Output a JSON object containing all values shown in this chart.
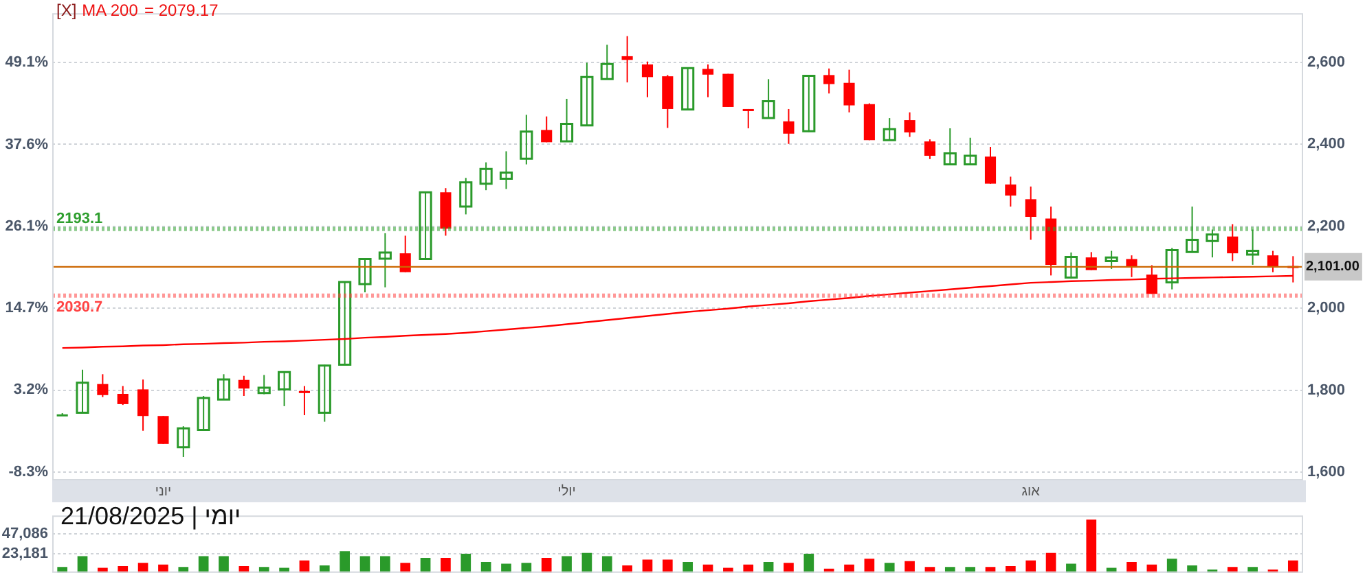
{
  "chart_data": [
    {
      "type": "candlestick",
      "title": "[X]",
      "annotations": [
        "= 2079.17"
      ],
      "categories": [
        null,
        null,
        null,
        null,
        null,
        "יוני",
        null,
        null,
        null,
        null,
        null,
        null,
        null,
        null,
        null,
        null,
        null,
        null,
        null,
        null,
        null,
        null,
        null,
        null,
        null,
        "יולי",
        null,
        null,
        null,
        null,
        null,
        null,
        null,
        null,
        null,
        null,
        null,
        null,
        null,
        null,
        null,
        null,
        null,
        null,
        null,
        null,
        null,
        null,
        "אוג",
        null,
        null,
        null,
        null,
        null,
        null,
        null,
        null,
        null,
        null,
        null,
        null,
        null
      ],
      "ohlc": [
        [
          1741,
          1744,
          1738,
          1741
        ],
        [
          1745,
          1850,
          1745,
          1818
        ],
        [
          1815,
          1839,
          1783,
          1788
        ],
        [
          1791,
          1810,
          1764,
          1766
        ],
        [
          1802,
          1826,
          1701,
          1737
        ],
        [
          1737,
          1737,
          1669,
          1669
        ],
        [
          1661,
          1712,
          1637,
          1707
        ],
        [
          1703,
          1786,
          1703,
          1781
        ],
        [
          1777,
          1839,
          1777,
          1826
        ],
        [
          1825,
          1835,
          1786,
          1804
        ],
        [
          1793,
          1837,
          1790,
          1806
        ],
        [
          1802,
          1846,
          1761,
          1844
        ],
        [
          1798,
          1810,
          1739,
          1795
        ],
        [
          1745,
          1862,
          1723,
          1860
        ],
        [
          1862,
          2064,
          1862,
          2064
        ],
        [
          2059,
          2122,
          2039,
          2120
        ],
        [
          2121,
          2183,
          2051,
          2136
        ],
        [
          2134,
          2177,
          2088,
          2088
        ],
        [
          2120,
          2285,
          2120,
          2283
        ],
        [
          2283,
          2293,
          2177,
          2194
        ],
        [
          2248,
          2318,
          2229,
          2307
        ],
        [
          2304,
          2356,
          2288,
          2340
        ],
        [
          2316,
          2383,
          2291,
          2331
        ],
        [
          2365,
          2472,
          2351,
          2431
        ],
        [
          2435,
          2468,
          2405,
          2405
        ],
        [
          2407,
          2511,
          2407,
          2450
        ],
        [
          2446,
          2599,
          2446,
          2564
        ],
        [
          2559,
          2643,
          2559,
          2596
        ],
        [
          2615,
          2664,
          2551,
          2606
        ],
        [
          2595,
          2602,
          2515,
          2564
        ],
        [
          2566,
          2569,
          2440,
          2486
        ],
        [
          2485,
          2588,
          2485,
          2586
        ],
        [
          2584,
          2595,
          2515,
          2570
        ],
        [
          2572,
          2572,
          2491,
          2491
        ],
        [
          2486,
          2486,
          2439,
          2481
        ],
        [
          2464,
          2559,
          2464,
          2505
        ],
        [
          2456,
          2486,
          2401,
          2426
        ],
        [
          2432,
          2569,
          2430,
          2567
        ],
        [
          2569,
          2585,
          2524,
          2547
        ],
        [
          2550,
          2582,
          2478,
          2495
        ],
        [
          2498,
          2500,
          2410,
          2410
        ],
        [
          2410,
          2464,
          2410,
          2437
        ],
        [
          2459,
          2478,
          2418,
          2429
        ],
        [
          2407,
          2412,
          2364,
          2372
        ],
        [
          2351,
          2439,
          2351,
          2378
        ],
        [
          2351,
          2416,
          2351,
          2372
        ],
        [
          2370,
          2394,
          2304,
          2304
        ],
        [
          2302,
          2321,
          2248,
          2275
        ],
        [
          2266,
          2297,
          2167,
          2223
        ],
        [
          2219,
          2248,
          2080,
          2106
        ],
        [
          2075,
          2136,
          2072,
          2125
        ],
        [
          2124,
          2137,
          2093,
          2093
        ],
        [
          2115,
          2140,
          2096,
          2124
        ],
        [
          2120,
          2129,
          2076,
          2102
        ],
        [
          2082,
          2105,
          2035,
          2035
        ],
        [
          2063,
          2147,
          2046,
          2142
        ],
        [
          2137,
          2248,
          2137,
          2167
        ],
        [
          2164,
          2192,
          2124,
          2180
        ],
        [
          2175,
          2205,
          2115,
          2134
        ],
        [
          2131,
          2192,
          2106,
          2140
        ],
        [
          2129,
          2140,
          2088,
          2102
        ],
        [
          2103,
          2127,
          2063,
          2101
        ]
      ],
      "colors": [
        "#2a9a2a",
        "#2a9a2a",
        "#ff0000",
        "#ff0000",
        "#ff0000",
        "#ff0000",
        "#2a9a2a",
        "#2a9a2a",
        "#2a9a2a",
        "#ff0000",
        "#2a9a2a",
        "#2a9a2a",
        "#ff0000",
        "#2a9a2a",
        "#2a9a2a",
        "#2a9a2a",
        "#2a9a2a",
        "#ff0000",
        "#2a9a2a",
        "#ff0000",
        "#2a9a2a",
        "#2a9a2a",
        "#2a9a2a",
        "#2a9a2a",
        "#ff0000",
        "#2a9a2a",
        "#2a9a2a",
        "#2a9a2a",
        "#ff0000",
        "#ff0000",
        "#ff0000",
        "#2a9a2a",
        "#ff0000",
        "#ff0000",
        "#ff0000",
        "#2a9a2a",
        "#ff0000",
        "#2a9a2a",
        "#ff0000",
        "#ff0000",
        "#ff0000",
        "#2a9a2a",
        "#ff0000",
        "#ff0000",
        "#2a9a2a",
        "#2a9a2a",
        "#ff0000",
        "#ff0000",
        "#ff0000",
        "#ff0000",
        "#2a9a2a",
        "#ff0000",
        "#2a9a2a",
        "#ff0000",
        "#ff0000",
        "#2a9a2a",
        "#2a9a2a",
        "#2a9a2a",
        "#ff0000",
        "#2a9a2a",
        "#ff0000",
        "#ff0000"
      ],
      "series": [
        {
          "type": "line",
          "name": "MA 200",
          "color": "#ff0000",
          "values": [
            1903,
            1904,
            1906,
            1907,
            1909,
            1910,
            1912,
            1913,
            1915,
            1916,
            1918,
            1919,
            1921,
            1923,
            1925,
            1928,
            1930,
            1933,
            1935,
            1937,
            1940,
            1944,
            1948,
            1952,
            1956,
            1961,
            1966,
            1971,
            1976,
            1981,
            1986,
            1991,
            1995,
            1999,
            2004,
            2008,
            2012,
            2017,
            2021,
            2025,
            2030,
            2034,
            2038,
            2042,
            2046,
            2050,
            2054,
            2058,
            2062,
            2064,
            2066,
            2067,
            2069,
            2070,
            2072,
            2073,
            2074,
            2075,
            2076,
            2077,
            2078,
            2079
          ]
        }
      ],
      "ylim": [
        1580,
        2720
      ],
      "yticks": [
        {
          "value": 1600,
          "label": "1,600"
        },
        {
          "value": 1800,
          "label": "1,800"
        },
        {
          "value": 2000,
          "label": "2,000"
        },
        {
          "value": 2200,
          "label": "2,200"
        },
        {
          "value": 2400,
          "label": "2,400"
        },
        {
          "value": 2600,
          "label": "2,600"
        }
      ],
      "y2lim": [
        -9.45,
        55.99
      ],
      "y2ticks": [
        {
          "value": -8.3,
          "label": "-8.3%"
        },
        {
          "value": 3.2,
          "label": "3.2%"
        },
        {
          "value": 14.7,
          "label": "14.7%"
        },
        {
          "value": 26.1,
          "label": "26.1%"
        },
        {
          "value": 37.6,
          "label": "37.6%"
        },
        {
          "value": 49.1,
          "label": "49.1%"
        }
      ],
      "ref_lines": [
        {
          "axis": "y",
          "value": 2193.1,
          "label": "2193.1",
          "color": "#2e9e2e",
          "line_style": "dotted"
        },
        {
          "axis": "y",
          "value": 2101,
          "label": "2,101.00",
          "color": "#cc6600",
          "line_style": "solid"
        },
        {
          "axis": "y",
          "value": 2030.7,
          "label": "2030.7",
          "color": "#ff4444",
          "line_style": "dotted"
        }
      ],
      "grid": "y",
      "legend": false
    },
    {
      "type": "bar",
      "categories": [
        null,
        null,
        null,
        null,
        null,
        null,
        null,
        null,
        null,
        null,
        null,
        null,
        null,
        null,
        null,
        null,
        null,
        null,
        null,
        null,
        null,
        null,
        null,
        null,
        null,
        null,
        null,
        null,
        null,
        null,
        null,
        null,
        null,
        null,
        null,
        null,
        null,
        null,
        null,
        null,
        null,
        null,
        null,
        null,
        null,
        null,
        null,
        null,
        null,
        null,
        null,
        null,
        null,
        null,
        null,
        null,
        null,
        null,
        null,
        null,
        null,
        null
      ],
      "values": [
        7000,
        20000,
        6000,
        8000,
        12000,
        10000,
        7000,
        20000,
        20000,
        8000,
        7000,
        6000,
        15000,
        9000,
        26000,
        20000,
        20000,
        12000,
        18000,
        18000,
        23000,
        13000,
        11000,
        12000,
        18000,
        20000,
        24000,
        20000,
        9000,
        16000,
        16000,
        13000,
        10000,
        6000,
        10000,
        13000,
        12000,
        23000,
        5000,
        10000,
        17000,
        12000,
        14000,
        7000,
        7000,
        7000,
        7000,
        8000,
        15000,
        24000,
        11000,
        64000,
        6000,
        13000,
        10000,
        17000,
        9000,
        4000,
        7000,
        7000,
        4000,
        15000
      ],
      "colors": [
        "#2a9a2a",
        "#2a9a2a",
        "#ff0000",
        "#ff0000",
        "#ff0000",
        "#ff0000",
        "#2a9a2a",
        "#2a9a2a",
        "#2a9a2a",
        "#ff0000",
        "#2a9a2a",
        "#2a9a2a",
        "#ff0000",
        "#2a9a2a",
        "#2a9a2a",
        "#2a9a2a",
        "#2a9a2a",
        "#ff0000",
        "#2a9a2a",
        "#ff0000",
        "#2a9a2a",
        "#2a9a2a",
        "#2a9a2a",
        "#2a9a2a",
        "#ff0000",
        "#2a9a2a",
        "#2a9a2a",
        "#2a9a2a",
        "#ff0000",
        "#ff0000",
        "#ff0000",
        "#2a9a2a",
        "#ff0000",
        "#ff0000",
        "#ff0000",
        "#2a9a2a",
        "#ff0000",
        "#2a9a2a",
        "#ff0000",
        "#ff0000",
        "#ff0000",
        "#2a9a2a",
        "#ff0000",
        "#ff0000",
        "#2a9a2a",
        "#2a9a2a",
        "#ff0000",
        "#ff0000",
        "#ff0000",
        "#ff0000",
        "#2a9a2a",
        "#ff0000",
        "#2a9a2a",
        "#ff0000",
        "#ff0000",
        "#2a9a2a",
        "#2a9a2a",
        "#2a9a2a",
        "#ff0000",
        "#2a9a2a",
        "#ff0000",
        "#ff0000"
      ],
      "ylim": [
        0,
        69000
      ],
      "yticks": [
        {
          "value": 23181,
          "label": "23,181"
        },
        {
          "value": 47086,
          "label": "47,086"
        }
      ],
      "annotations": [
        "יומי | 21/08/2025"
      ],
      "tick_labels": "y",
      "grid": "y",
      "legend": false
    }
  ]
}
